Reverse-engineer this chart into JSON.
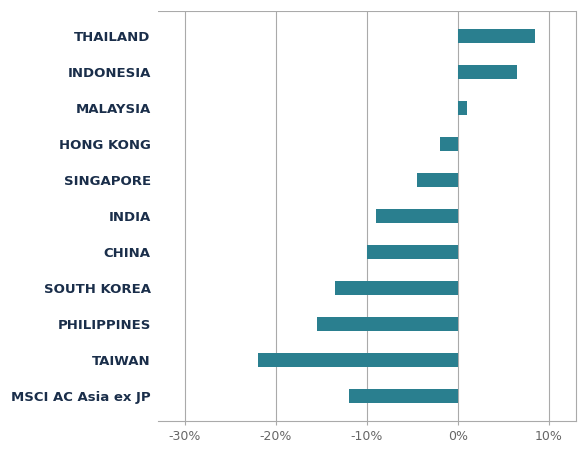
{
  "categories": [
    "THAILAND",
    "INDONESIA",
    "MALAYSIA",
    "HONG KONG",
    "SINGAPORE",
    "INDIA",
    "CHINA",
    "SOUTH KOREA",
    "PHILIPPINES",
    "TAIWAN",
    "MSCI AC Asia ex JP"
  ],
  "values": [
    8.5,
    6.5,
    1.0,
    -2.0,
    -4.5,
    -9.0,
    -10.0,
    -13.5,
    -15.5,
    -22.0,
    -12.0
  ],
  "bar_color": "#2a7f8f",
  "xlim": [
    -33,
    13
  ],
  "xticks": [
    -30,
    -20,
    -10,
    0,
    10
  ],
  "xtick_labels": [
    "-30%",
    "-20%",
    "-10%",
    "0%",
    "10%"
  ],
  "label_color": "#1a2e4a",
  "label_fontsize": 9.5,
  "tick_fontsize": 9,
  "background_color": "#ffffff",
  "grid_color": "#aaaaaa",
  "bar_height": 0.4
}
